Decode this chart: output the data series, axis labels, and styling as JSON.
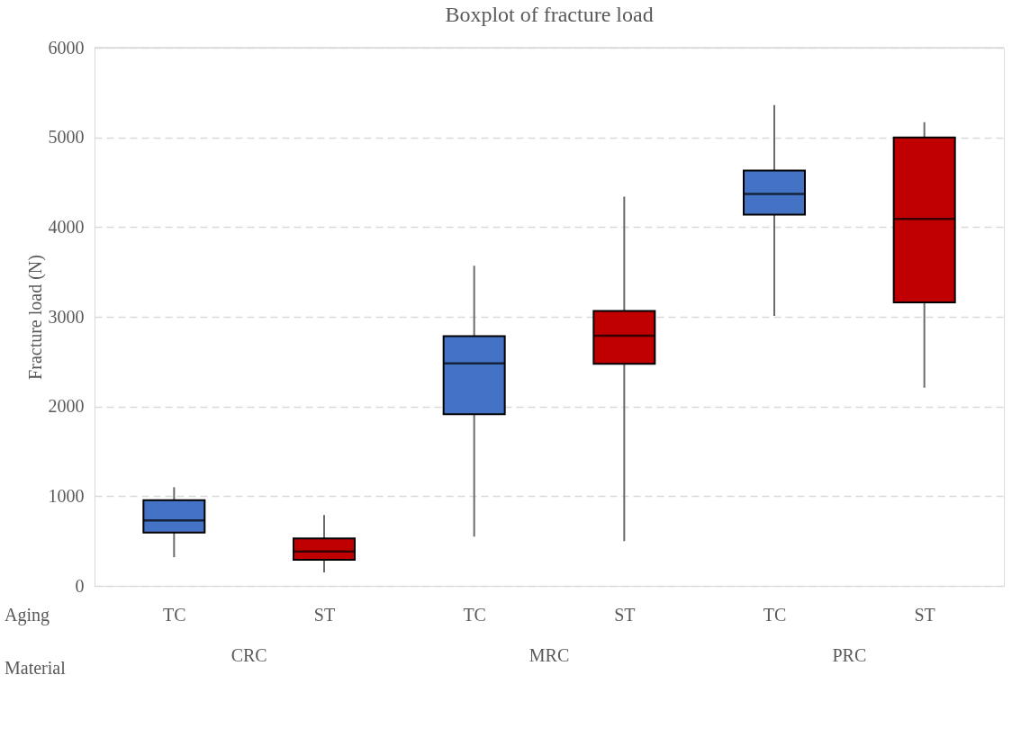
{
  "chart_data": {
    "type": "box",
    "title": "Boxplot of fracture load",
    "ylabel": "Fracture load (N)",
    "categories": [
      "TC",
      "ST",
      "TC",
      "ST",
      "TC",
      "ST"
    ],
    "colors": [
      "#4472c4",
      "#c00000",
      "#4472c4",
      "#c00000",
      "#4472c4",
      "#c00000"
    ],
    "boxes": [
      {
        "low": 320,
        "q1": 595,
        "median": 730,
        "q3": 955,
        "high": 1100
      },
      {
        "low": 150,
        "q1": 290,
        "median": 385,
        "q3": 530,
        "high": 790
      },
      {
        "low": 550,
        "q1": 1915,
        "median": 2480,
        "q3": 2785,
        "high": 3570
      },
      {
        "low": 500,
        "q1": 2475,
        "median": 2790,
        "q3": 3065,
        "high": 4340
      },
      {
        "low": 3010,
        "q1": 4140,
        "median": 4370,
        "q3": 4630,
        "high": 5360
      },
      {
        "low": 2210,
        "q1": 3160,
        "median": 4090,
        "q3": 5000,
        "high": 5170
      }
    ],
    "annotations": [
      "Aging",
      "Material",
      "CRC",
      "MRC",
      "PRC"
    ],
    "ylim": [
      0,
      6000
    ],
    "yticks": [
      0,
      1000,
      2000,
      3000,
      4000,
      5000,
      6000
    ],
    "grid": "y"
  }
}
